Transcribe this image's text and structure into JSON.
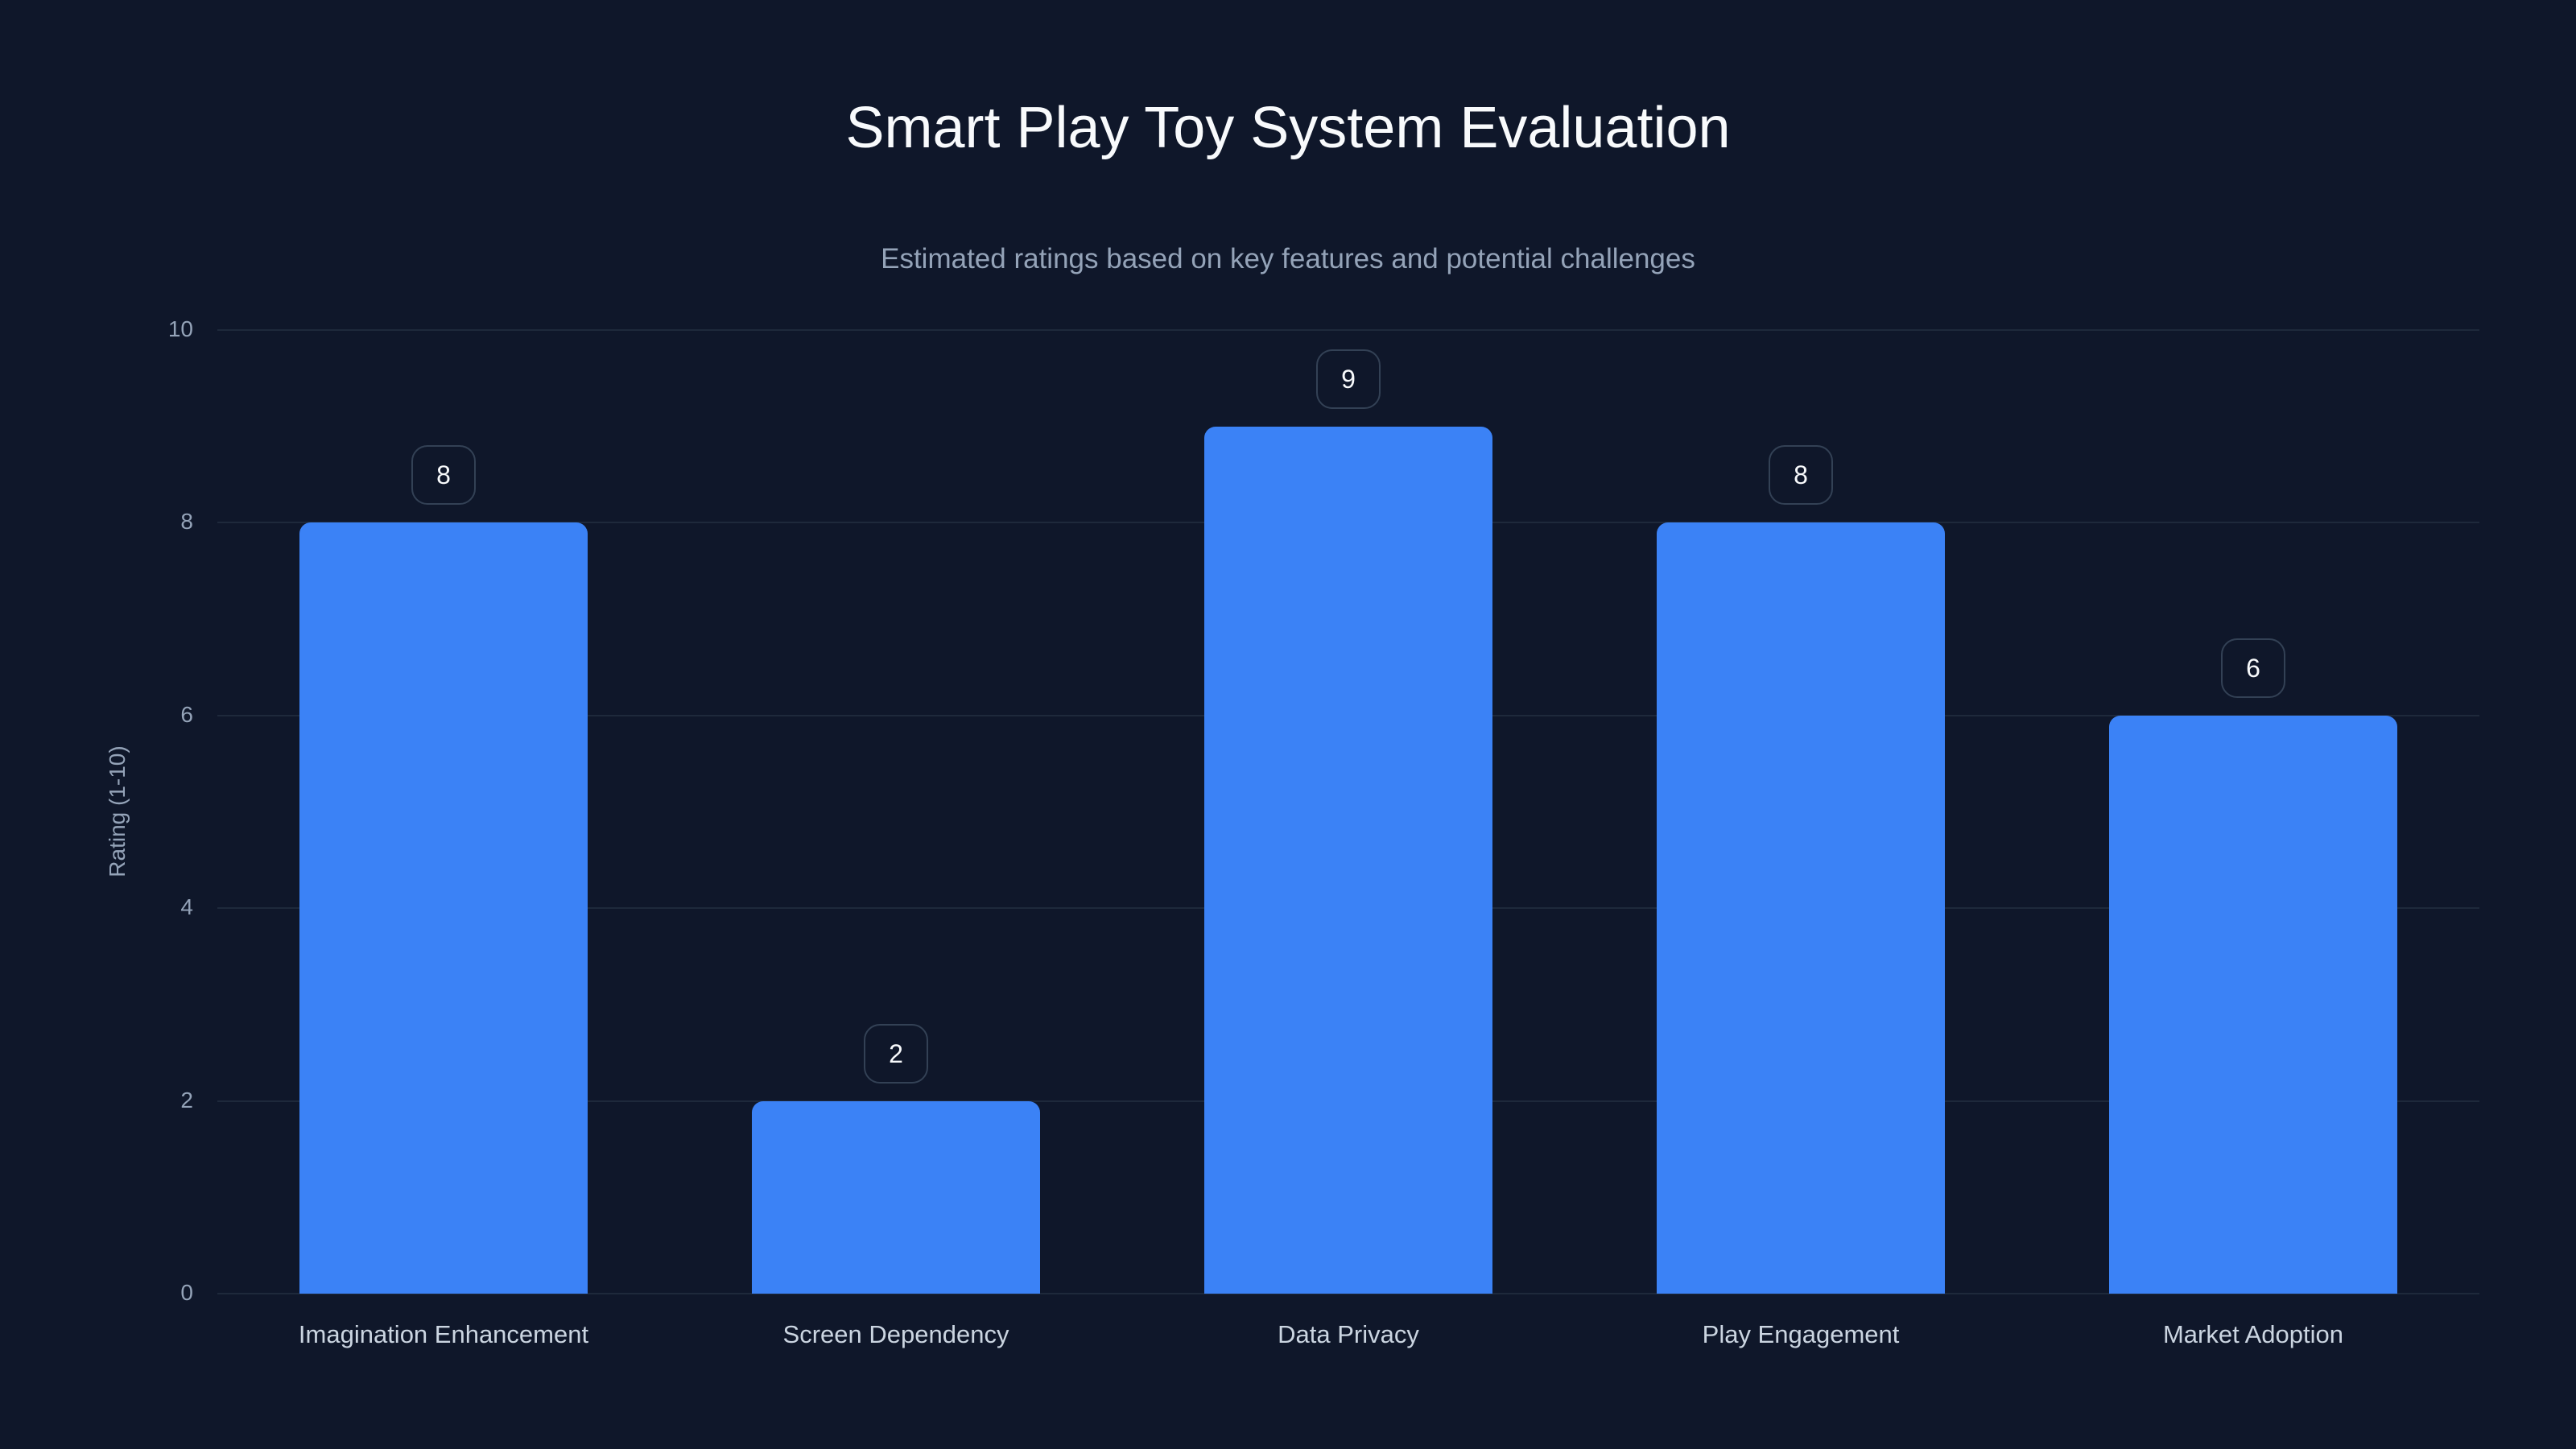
{
  "header": {
    "title": "Smart Play Toy System Evaluation",
    "subtitle": "Estimated ratings based on key features and potential challenges"
  },
  "axes": {
    "ylabel": "Rating (1-10)",
    "yticks": [
      "0",
      "2",
      "4",
      "6",
      "8",
      "10"
    ]
  },
  "colors": {
    "bar": "#3b82f6",
    "background": "#0f172a",
    "grid": "#1e293b"
  },
  "chart_data": {
    "type": "bar",
    "title": "Smart Play Toy System Evaluation",
    "subtitle": "Estimated ratings based on key features and potential challenges",
    "categories": [
      "Imagination Enhancement",
      "Screen Dependency",
      "Data Privacy",
      "Play Engagement",
      "Market Adoption"
    ],
    "values": [
      8,
      2,
      9,
      8,
      6
    ],
    "value_labels": [
      "8",
      "2",
      "9",
      "8",
      "6"
    ],
    "xlabel": "",
    "ylabel": "Rating (1-10)",
    "ylim": [
      0,
      10
    ],
    "yticks": [
      0,
      2,
      4,
      6,
      8,
      10
    ],
    "grid": true,
    "legend": null
  }
}
